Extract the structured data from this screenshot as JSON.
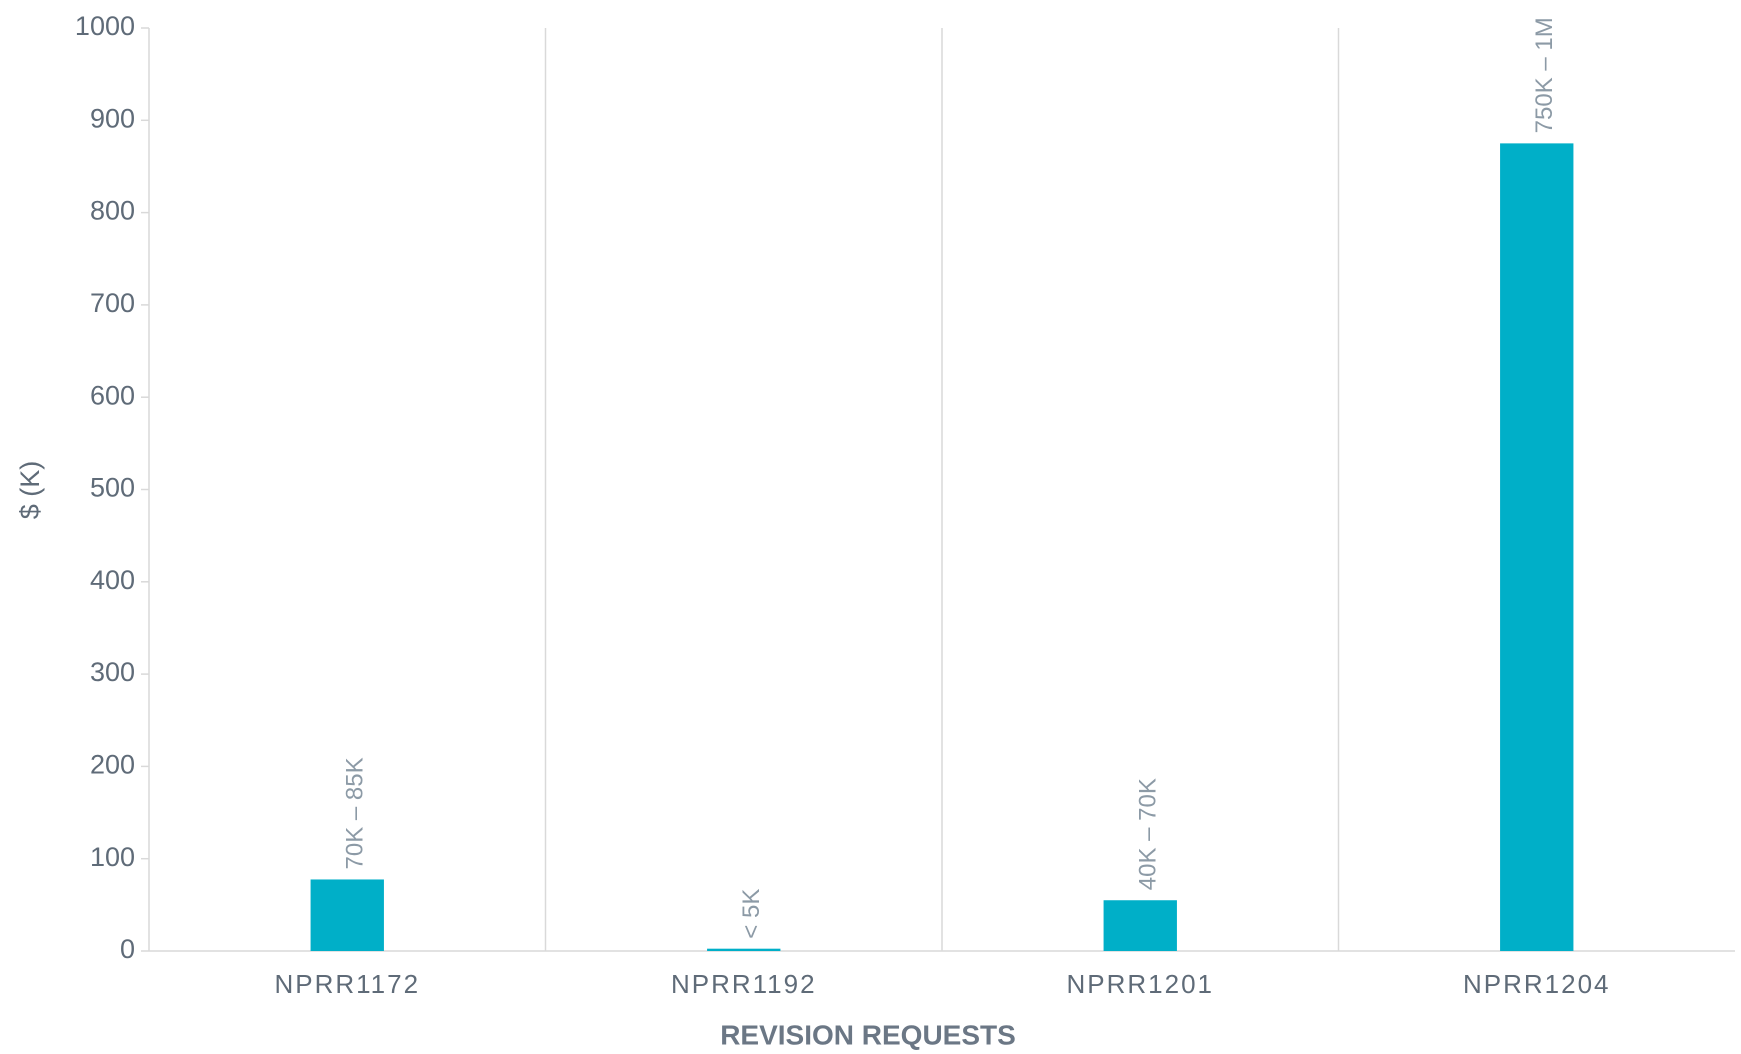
{
  "chart_data": {
    "type": "bar",
    "categories": [
      "NPRR1172",
      "NPRR1192",
      "NPRR1201",
      "NPRR1204"
    ],
    "values": [
      77.5,
      2.5,
      55,
      875
    ],
    "value_labels": [
      "70K – 85K",
      "< 5K",
      "40K – 70K",
      "750K – 1M"
    ],
    "color": "#00afc8",
    "ylabel": "$ (K)",
    "xlabel": "REVISION REQUESTS",
    "ylim": [
      0,
      1000
    ],
    "yticks": [
      0,
      100,
      200,
      300,
      400,
      500,
      600,
      700,
      800,
      900,
      1000
    ]
  }
}
